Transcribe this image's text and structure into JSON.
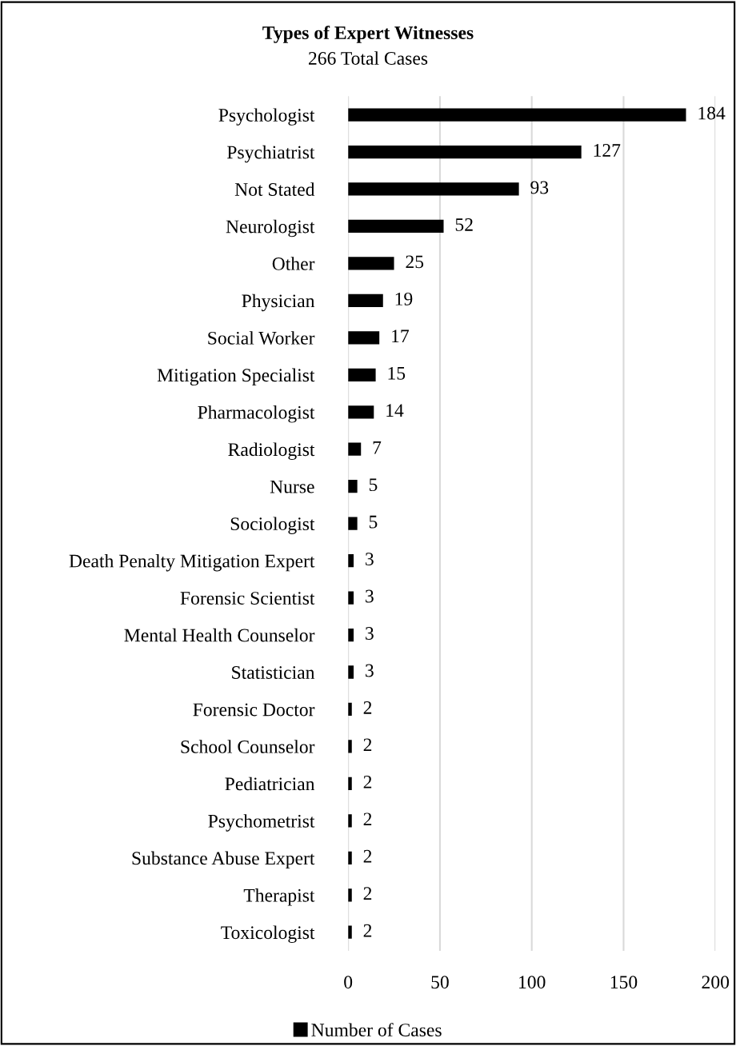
{
  "chart_data": {
    "type": "bar",
    "orientation": "horizontal",
    "title": "Types of Expert Witnesses",
    "subtitle": "266 Total Cases",
    "categories": [
      "Psychologist",
      "Psychiatrist",
      "Not Stated",
      "Neurologist",
      "Other",
      "Physician",
      "Social Worker",
      "Mitigation Specialist",
      "Pharmacologist",
      "Radiologist",
      "Nurse",
      "Sociologist",
      "Death Penalty Mitigation Expert",
      "Forensic Scientist",
      "Mental Health Counselor",
      "Statistician",
      "Forensic Doctor",
      "School Counselor",
      "Pediatrician",
      "Psychometrist",
      "Substance Abuse Expert",
      "Therapist",
      "Toxicologist"
    ],
    "series": [
      {
        "name": "Number of Cases",
        "color": "#000000",
        "values": [
          184,
          127,
          93,
          52,
          25,
          19,
          17,
          15,
          14,
          7,
          5,
          5,
          3,
          3,
          3,
          3,
          2,
          2,
          2,
          2,
          2,
          2,
          2
        ]
      }
    ],
    "xlim": [
      0,
      200
    ],
    "xticks": [
      0,
      50,
      100,
      150,
      200
    ],
    "grid": "x",
    "legend": "bottom",
    "data_labels": true
  }
}
